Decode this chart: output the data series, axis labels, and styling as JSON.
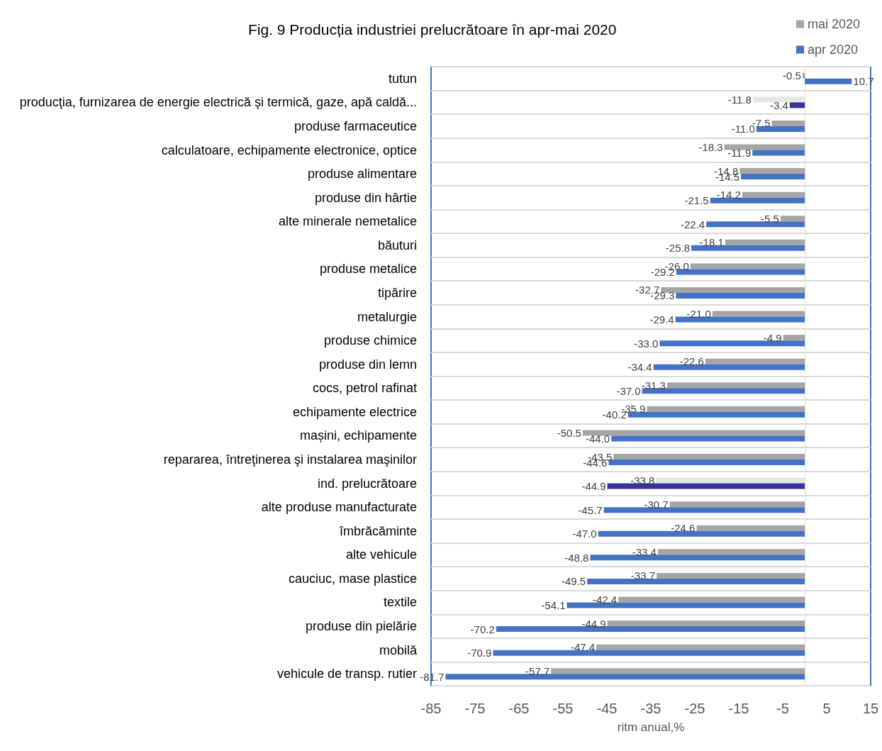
{
  "chart_data": {
    "type": "bar",
    "orientation": "horizontal",
    "title": "Fig. 9 Producția industriei prelucrătoare în apr-mai 2020",
    "xlabel": "ritm anual,%",
    "categories": [
      "tutun",
      "producţia, furnizarea de energie electrică şi termică, gaze, apă caldă...",
      "produse farmaceutice",
      "calculatoare, echipamente electronice, optice",
      "produse alimentare",
      "produse din hârtie",
      "alte minerale nemetalice",
      "băuturi",
      "produse metalice",
      "tipărire",
      "metalurgie",
      "produse chimice",
      "produse din lemn",
      "cocs, petrol rafinat",
      "echipamente electrice",
      "mașini, echipamente",
      "repararea, întreţinerea şi instalarea maşinilor",
      "ind. prelucrătoare",
      "alte produse manufacturate",
      "îmbrăcăminte",
      "alte vehicule",
      "cauciuc, mase plastice",
      "textile",
      "produse din pielărie",
      "mobilă",
      "vehicule de transp. rutier"
    ],
    "series": [
      {
        "name": "mai 2020",
        "color": "#a5a5a5",
        "colors": [
          "#a5a5a5",
          "#e7e6e6",
          "#a5a5a5",
          "#a5a5a5",
          "#a5a5a5",
          "#a5a5a5",
          "#a5a5a5",
          "#a5a5a5",
          "#a5a5a5",
          "#a5a5a5",
          "#a5a5a5",
          "#a5a5a5",
          "#a5a5a5",
          "#a5a5a5",
          "#a5a5a5",
          "#a5a5a5",
          "#a5a5a5",
          "#e7e6e6",
          "#a5a5a5",
          "#a5a5a5",
          "#a5a5a5",
          "#a5a5a5",
          "#a5a5a5",
          "#a5a5a5",
          "#a5a5a5",
          "#a5a5a5"
        ],
        "values": [
          -0.5,
          -11.8,
          -7.5,
          -18.3,
          -14.8,
          -14.2,
          -5.5,
          -18.1,
          -26.0,
          -32.7,
          -21.0,
          -4.9,
          -22.6,
          -31.3,
          -35.9,
          -50.5,
          -43.5,
          -33.8,
          -30.7,
          -24.6,
          -33.4,
          -33.7,
          -42.4,
          -44.9,
          -47.4,
          -57.7
        ],
        "value_labels": [
          "-0.5",
          "-11.8",
          "-7.5",
          "-18.3",
          "-14.8",
          "-14.2",
          "-5.5",
          "-18.1",
          "-26.0",
          "-32.7",
          "-21.0",
          "-4.9",
          "-22.6",
          "-31.3",
          "-35.9",
          "-50.5",
          "-43.5",
          "-33.8",
          "-30.7",
          "-24.6",
          "-33.4",
          "-33.7",
          "-42.4",
          "-44.9",
          "-47.4",
          "-57.7"
        ]
      },
      {
        "name": "apr 2020",
        "color": "#4472c4",
        "colors": [
          "#4472c4",
          "#333399",
          "#4472c4",
          "#4472c4",
          "#4472c4",
          "#4472c4",
          "#4472c4",
          "#4472c4",
          "#4472c4",
          "#4472c4",
          "#4472c4",
          "#4472c4",
          "#4472c4",
          "#4472c4",
          "#4472c4",
          "#4472c4",
          "#4472c4",
          "#333399",
          "#4472c4",
          "#4472c4",
          "#4472c4",
          "#4472c4",
          "#4472c4",
          "#4472c4",
          "#4472c4",
          "#4472c4"
        ],
        "values": [
          10.7,
          -3.4,
          -11.0,
          -11.9,
          -14.5,
          -21.5,
          -22.4,
          -25.8,
          -29.2,
          -29.3,
          -29.4,
          -33.0,
          -34.4,
          -37.0,
          -40.2,
          -44.0,
          -44.6,
          -44.9,
          -45.7,
          -47.0,
          -48.8,
          -49.5,
          -54.1,
          -70.2,
          -70.9,
          -81.7
        ],
        "value_labels": [
          "10.7",
          "-3.4",
          "-11.0",
          "-11.9",
          "-14.5",
          "-21.5",
          "-22.4",
          "-25.8",
          "-29.2",
          "-29.3",
          "-29.4",
          "-33.0",
          "-34.4",
          "-37.0",
          "-40.2",
          "-44.0",
          "-44.6",
          "-44.9",
          "-45.7",
          "-47.0",
          "-48.8",
          "-49.5",
          "-54.1",
          "-70.2",
          "-70.9",
          "-81.7"
        ]
      }
    ],
    "xlim": [
      -85,
      15
    ],
    "xticks": [
      -85,
      -75,
      -65,
      -55,
      -45,
      -35,
      -25,
      -15,
      -5,
      5,
      15
    ],
    "grid": "y",
    "legend": "top right"
  }
}
